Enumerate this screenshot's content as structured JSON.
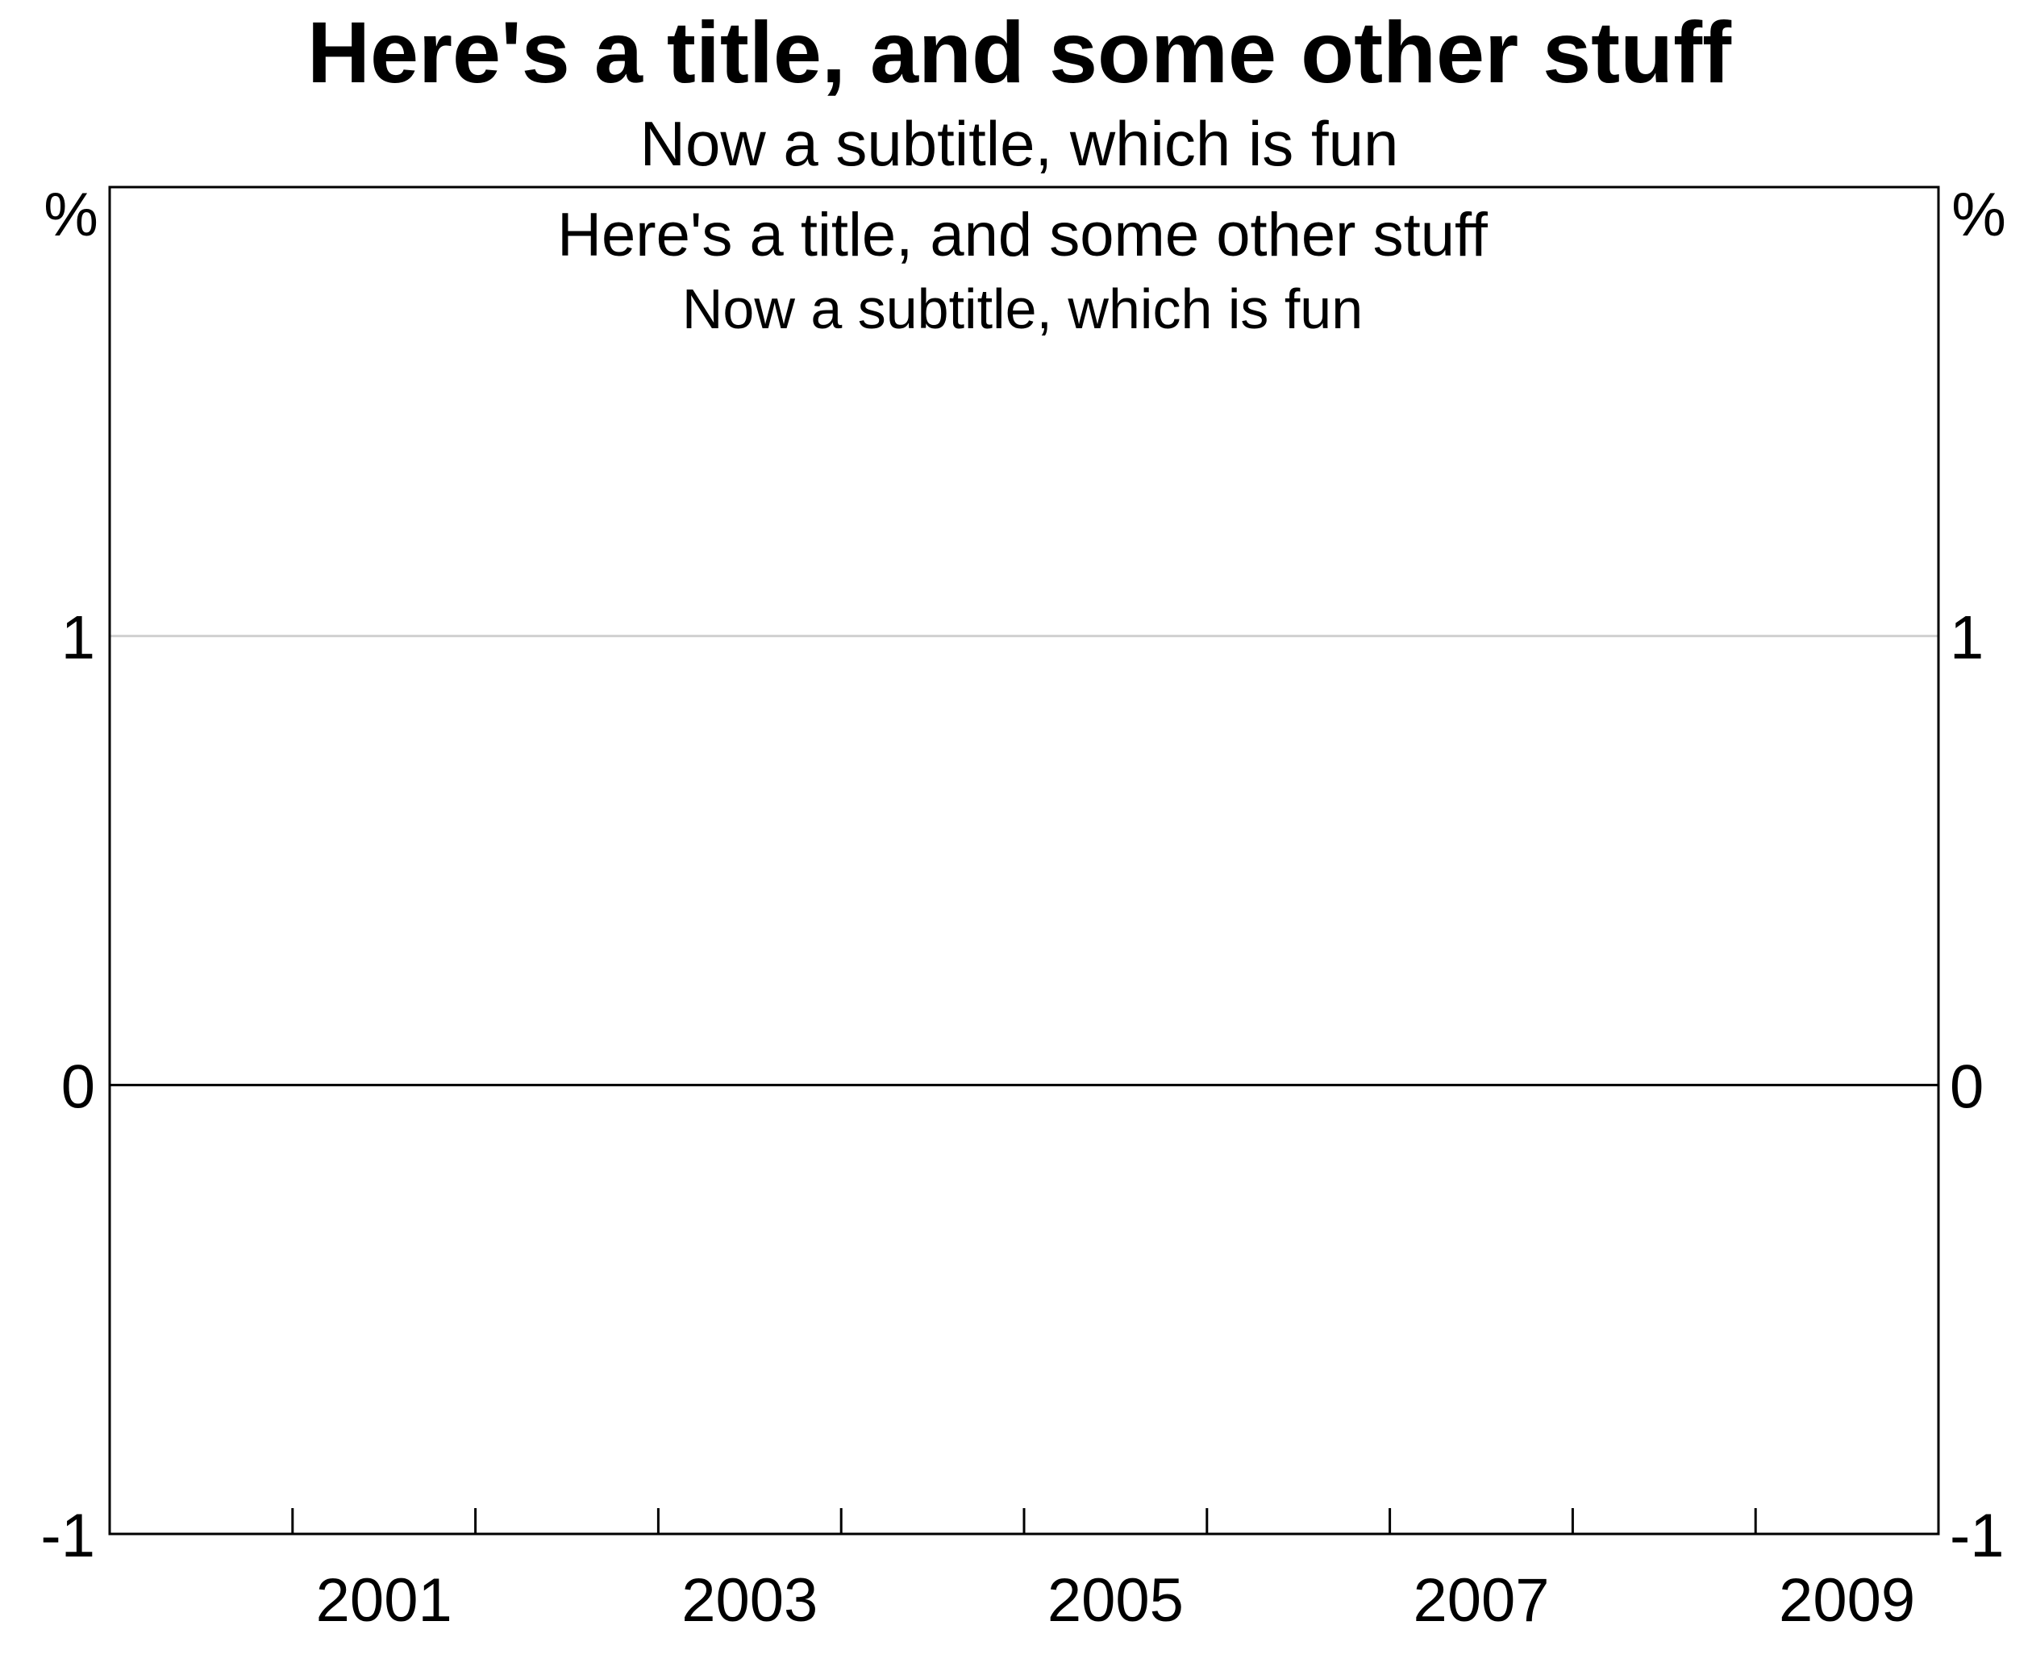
{
  "chart_data": {
    "type": "line",
    "title": "Here's a title, and some other stuff",
    "subtitle": "Now a subtitle, which is fun",
    "panel_title": "Here's a title, and some other stuff",
    "panel_subtitle": "Now a subtitle, which is fun",
    "xlabel": "",
    "ylabel": "",
    "y_unit_left": "%",
    "y_unit_right": "%",
    "x_range": [
      2000,
      2010
    ],
    "x_tick_labels": [
      "2001",
      "2003",
      "2005",
      "2007",
      "2009"
    ],
    "ylim": [
      -1,
      2
    ],
    "y_ticks": [
      -1,
      0,
      1
    ],
    "y_tick_labels": [
      "-1",
      "0",
      "1"
    ],
    "series": [],
    "zero_line": true,
    "grid": true,
    "colors": {
      "axis": "#000000",
      "gridline": "#d0d0d0",
      "zero_line": "#000000",
      "background": "#ffffff"
    }
  }
}
